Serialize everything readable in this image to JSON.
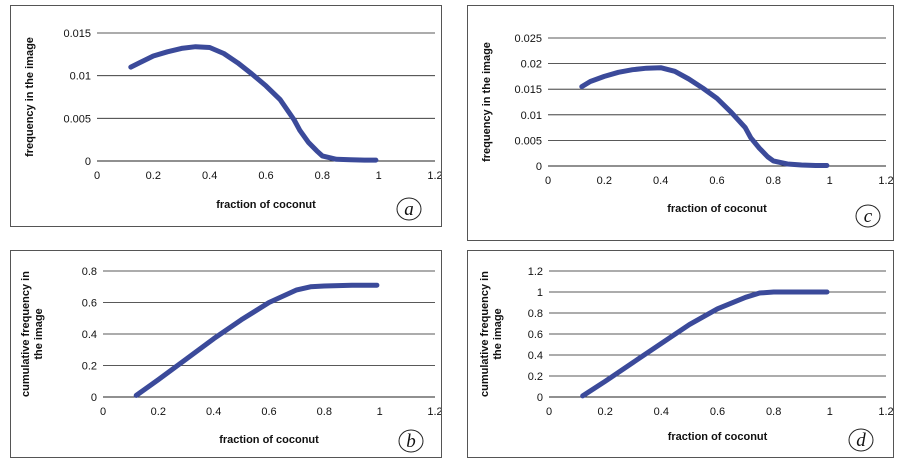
{
  "chart_data": [
    {
      "id": "a",
      "type": "line",
      "panel_letter": "a",
      "xlabel": "fraction of coconut",
      "ylabel": "frequency in the image",
      "xlim": [
        0,
        1.2
      ],
      "ylim": [
        0,
        0.015
      ],
      "x_ticks": [
        "0",
        "0.2",
        "0.4",
        "0.6",
        "0.8",
        "1",
        "1.2"
      ],
      "y_ticks": [
        "0",
        "0.005",
        "0.01",
        "0.015"
      ],
      "grid": "horizontal",
      "series": [
        {
          "x": [
            0.12,
            0.15,
            0.2,
            0.25,
            0.3,
            0.35,
            0.4,
            0.45,
            0.5,
            0.55,
            0.6,
            0.65,
            0.7,
            0.72,
            0.75,
            0.78,
            0.8,
            0.85,
            0.9,
            0.95,
            0.99
          ],
          "y": [
            0.011,
            0.0115,
            0.0123,
            0.0128,
            0.0132,
            0.0134,
            0.0133,
            0.0126,
            0.0115,
            0.0102,
            0.0088,
            0.0072,
            0.0048,
            0.0036,
            0.0022,
            0.0012,
            0.0006,
            0.0002,
            0.00015,
            0.0001,
            0.0001
          ]
        }
      ]
    },
    {
      "id": "b",
      "type": "line",
      "panel_letter": "b",
      "xlabel": "fraction of coconut",
      "ylabel": "cumulative frequency in the image",
      "xlim": [
        0,
        1.2
      ],
      "ylim": [
        0,
        0.8
      ],
      "x_ticks": [
        "0",
        "0.2",
        "0.4",
        "0.6",
        "0.8",
        "1",
        "1.2"
      ],
      "y_ticks": [
        "0",
        "0.2",
        "0.4",
        "0.6",
        "0.8"
      ],
      "grid": "horizontal",
      "series": [
        {
          "x": [
            0.12,
            0.2,
            0.3,
            0.4,
            0.5,
            0.6,
            0.7,
            0.75,
            0.8,
            0.9,
            0.99
          ],
          "y": [
            0.01,
            0.11,
            0.24,
            0.37,
            0.49,
            0.6,
            0.68,
            0.7,
            0.705,
            0.71,
            0.71
          ]
        }
      ]
    },
    {
      "id": "c",
      "type": "line",
      "panel_letter": "c",
      "xlabel": "fraction of coconut",
      "ylabel": "frequency in the image",
      "xlim": [
        0,
        1.2
      ],
      "ylim": [
        0,
        0.025
      ],
      "x_ticks": [
        "0",
        "0.2",
        "0.4",
        "0.6",
        "0.8",
        "1",
        "1.2"
      ],
      "y_ticks": [
        "0",
        "0.005",
        "0.01",
        "0.015",
        "0.02",
        "0.025"
      ],
      "grid": "horizontal",
      "series": [
        {
          "x": [
            0.12,
            0.15,
            0.2,
            0.25,
            0.3,
            0.35,
            0.4,
            0.45,
            0.5,
            0.55,
            0.6,
            0.65,
            0.7,
            0.72,
            0.75,
            0.78,
            0.8,
            0.85,
            0.9,
            0.95,
            0.99
          ],
          "y": [
            0.0155,
            0.0165,
            0.0175,
            0.0183,
            0.0188,
            0.0191,
            0.0192,
            0.0185,
            0.017,
            0.0152,
            0.0132,
            0.0105,
            0.0075,
            0.0055,
            0.0035,
            0.0018,
            0.001,
            0.0004,
            0.0002,
            0.0001,
            0.0001
          ]
        }
      ]
    },
    {
      "id": "d",
      "type": "line",
      "panel_letter": "d",
      "xlabel": "fraction of coconut",
      "ylabel": "cumulative frequency in the image",
      "xlim": [
        0,
        1.2
      ],
      "ylim": [
        0,
        1.2
      ],
      "x_ticks": [
        "0",
        "0.2",
        "0.4",
        "0.6",
        "0.8",
        "1",
        "1.2"
      ],
      "y_ticks": [
        "0",
        "0.2",
        "0.4",
        "0.6",
        "0.8",
        "1",
        "1.2"
      ],
      "grid": "horizontal",
      "series": [
        {
          "x": [
            0.12,
            0.2,
            0.3,
            0.4,
            0.5,
            0.6,
            0.7,
            0.75,
            0.8,
            0.9,
            0.99
          ],
          "y": [
            0.01,
            0.15,
            0.33,
            0.51,
            0.69,
            0.84,
            0.95,
            0.99,
            1.0,
            1.0,
            1.0
          ]
        }
      ]
    }
  ],
  "colors": {
    "series": "#3b4a9a",
    "grid": "#222222",
    "frame": "#555555"
  }
}
